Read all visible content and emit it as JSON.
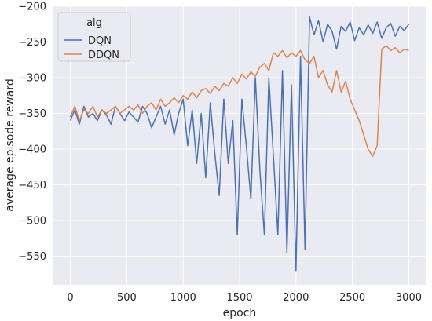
{
  "chart_data": {
    "type": "line",
    "xlabel": "epoch",
    "ylabel": "average episode reward",
    "xlim": [
      -150,
      3150
    ],
    "ylim": [
      -590,
      -200
    ],
    "xticks": [
      0,
      500,
      1000,
      1500,
      2000,
      2500,
      3000
    ],
    "yticks": [
      -550,
      -500,
      -450,
      -400,
      -350,
      -300,
      -250,
      -200
    ],
    "grid": true,
    "background": "#eaeaf2",
    "legend": {
      "title": "alg",
      "placement": "top-left"
    },
    "series": [
      {
        "name": "DQN",
        "color": "#4c72b0",
        "x": [
          0,
          40,
          80,
          120,
          160,
          200,
          240,
          280,
          320,
          360,
          400,
          440,
          480,
          520,
          560,
          600,
          640,
          680,
          720,
          760,
          800,
          840,
          880,
          920,
          960,
          1000,
          1040,
          1080,
          1120,
          1160,
          1200,
          1240,
          1280,
          1320,
          1360,
          1400,
          1440,
          1480,
          1520,
          1560,
          1600,
          1640,
          1680,
          1720,
          1760,
          1800,
          1840,
          1880,
          1920,
          1960,
          2000,
          2040,
          2080,
          2120,
          2160,
          2200,
          2240,
          2280,
          2320,
          2360,
          2400,
          2440,
          2480,
          2520,
          2560,
          2600,
          2640,
          2680,
          2720,
          2760,
          2800,
          2840,
          2880,
          2920,
          2960,
          3000
        ],
        "y": [
          -360,
          -345,
          -365,
          -340,
          -355,
          -350,
          -360,
          -345,
          -352,
          -365,
          -340,
          -350,
          -360,
          -348,
          -355,
          -362,
          -340,
          -350,
          -370,
          -355,
          -340,
          -365,
          -345,
          -380,
          -350,
          -330,
          -395,
          -345,
          -420,
          -350,
          -440,
          -335,
          -405,
          -465,
          -330,
          -420,
          -360,
          -520,
          -330,
          -395,
          -470,
          -300,
          -430,
          -520,
          -300,
          -410,
          -520,
          -290,
          -545,
          -310,
          -570,
          -270,
          -540,
          -215,
          -240,
          -220,
          -250,
          -225,
          -235,
          -260,
          -228,
          -235,
          -222,
          -248,
          -230,
          -240,
          -226,
          -238,
          -222,
          -245,
          -230,
          -224,
          -242,
          -228,
          -234,
          -225
        ]
      },
      {
        "name": "DDQN",
        "color": "#dd8452",
        "x": [
          0,
          40,
          80,
          120,
          160,
          200,
          240,
          280,
          320,
          360,
          400,
          440,
          480,
          520,
          560,
          600,
          640,
          680,
          720,
          760,
          800,
          840,
          880,
          920,
          960,
          1000,
          1040,
          1080,
          1120,
          1160,
          1200,
          1240,
          1280,
          1320,
          1360,
          1400,
          1440,
          1480,
          1520,
          1560,
          1600,
          1640,
          1680,
          1720,
          1760,
          1800,
          1840,
          1880,
          1920,
          1960,
          2000,
          2040,
          2080,
          2120,
          2160,
          2200,
          2240,
          2280,
          2320,
          2360,
          2400,
          2440,
          2480,
          2520,
          2560,
          2600,
          2640,
          2680,
          2720,
          2760,
          2800,
          2840,
          2880,
          2920,
          2960,
          3000
        ],
        "y": [
          -355,
          -340,
          -360,
          -345,
          -350,
          -340,
          -355,
          -345,
          -350,
          -345,
          -340,
          -350,
          -345,
          -340,
          -345,
          -338,
          -350,
          -340,
          -335,
          -345,
          -330,
          -340,
          -335,
          -328,
          -335,
          -325,
          -330,
          -320,
          -328,
          -318,
          -315,
          -322,
          -312,
          -318,
          -308,
          -312,
          -300,
          -308,
          -295,
          -302,
          -292,
          -298,
          -285,
          -280,
          -290,
          -265,
          -270,
          -262,
          -272,
          -265,
          -270,
          -262,
          -275,
          -280,
          -270,
          -300,
          -290,
          -310,
          -320,
          -290,
          -320,
          -305,
          -330,
          -345,
          -360,
          -380,
          -400,
          -410,
          -395,
          -260,
          -255,
          -262,
          -258,
          -265,
          -260,
          -262
        ]
      }
    ]
  }
}
